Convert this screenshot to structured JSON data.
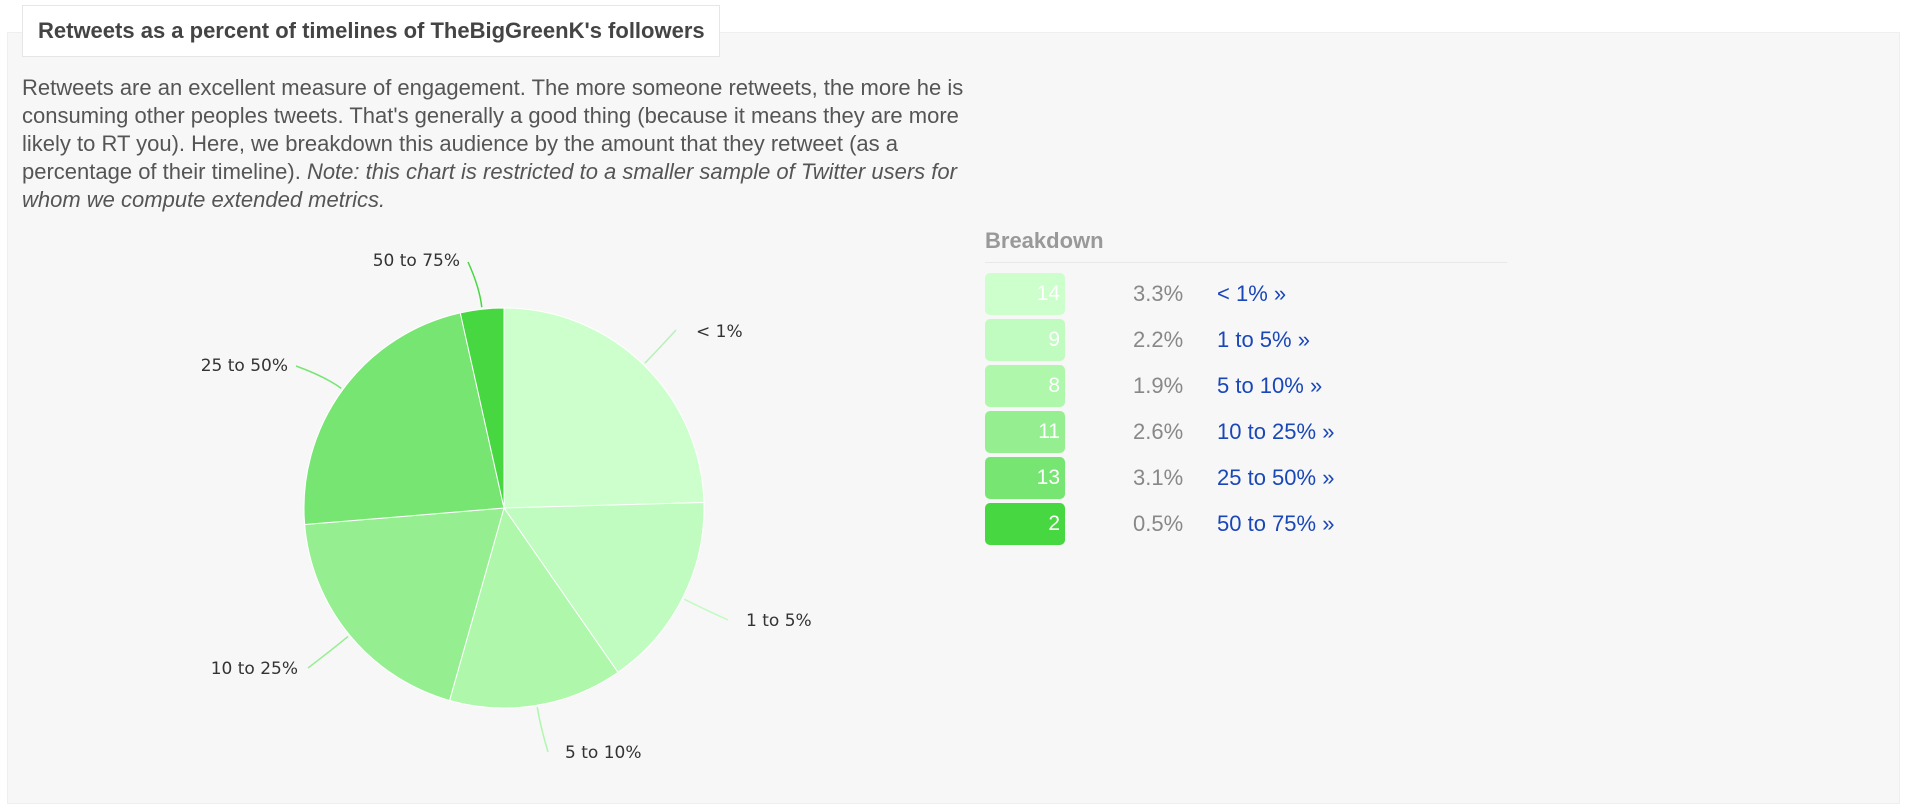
{
  "header": {
    "title": "Retweets as a percent of timelines of TheBigGreenK's followers"
  },
  "description": {
    "text": "Retweets are an excellent measure of engagement. The more someone retweets, the more he is consuming other peoples tweets. That's generally a good thing (because it means they are more likely to RT you). Here, we breakdown this audience by the amount that they retweet (as a percentage of their timeline). ",
    "note": "Note: this chart is restricted to a smaller sample of Twitter users for whom we compute extended metrics."
  },
  "breakdown": {
    "title": "Breakdown",
    "rows": [
      {
        "count": "14",
        "percent": "3.3%",
        "link": "< 1% »",
        "color": "#ccffcc"
      },
      {
        "count": "9",
        "percent": "2.2%",
        "link": "1 to 5% »",
        "color": "#c0fcc0"
      },
      {
        "count": "8",
        "percent": "1.9%",
        "link": "5 to 10% »",
        "color": "#aef7ab"
      },
      {
        "count": "11",
        "percent": "2.6%",
        "link": "10 to 25% »",
        "color": "#95ef91"
      },
      {
        "count": "13",
        "percent": "3.1%",
        "link": "25 to 50% »",
        "color": "#76e571"
      },
      {
        "count": "2",
        "percent": "0.5%",
        "link": "50 to 75% »",
        "color": "#47d740"
      }
    ]
  },
  "chart_data": {
    "type": "pie",
    "title": "Retweets as a percent of timelines of TheBigGreenK's followers",
    "slices": [
      {
        "label": "< 1%",
        "value": 14,
        "color": "#ccffcc"
      },
      {
        "label": "1 to 5%",
        "value": 9,
        "color": "#c0fcc0"
      },
      {
        "label": "5 to 10%",
        "value": 8,
        "color": "#aef7ab"
      },
      {
        "label": "10 to 25%",
        "value": 11,
        "color": "#95ef91"
      },
      {
        "label": "25 to 50%",
        "value": 13,
        "color": "#76e571"
      },
      {
        "label": "50 to 75%",
        "value": 2,
        "color": "#47d740"
      }
    ],
    "legend": "right"
  }
}
